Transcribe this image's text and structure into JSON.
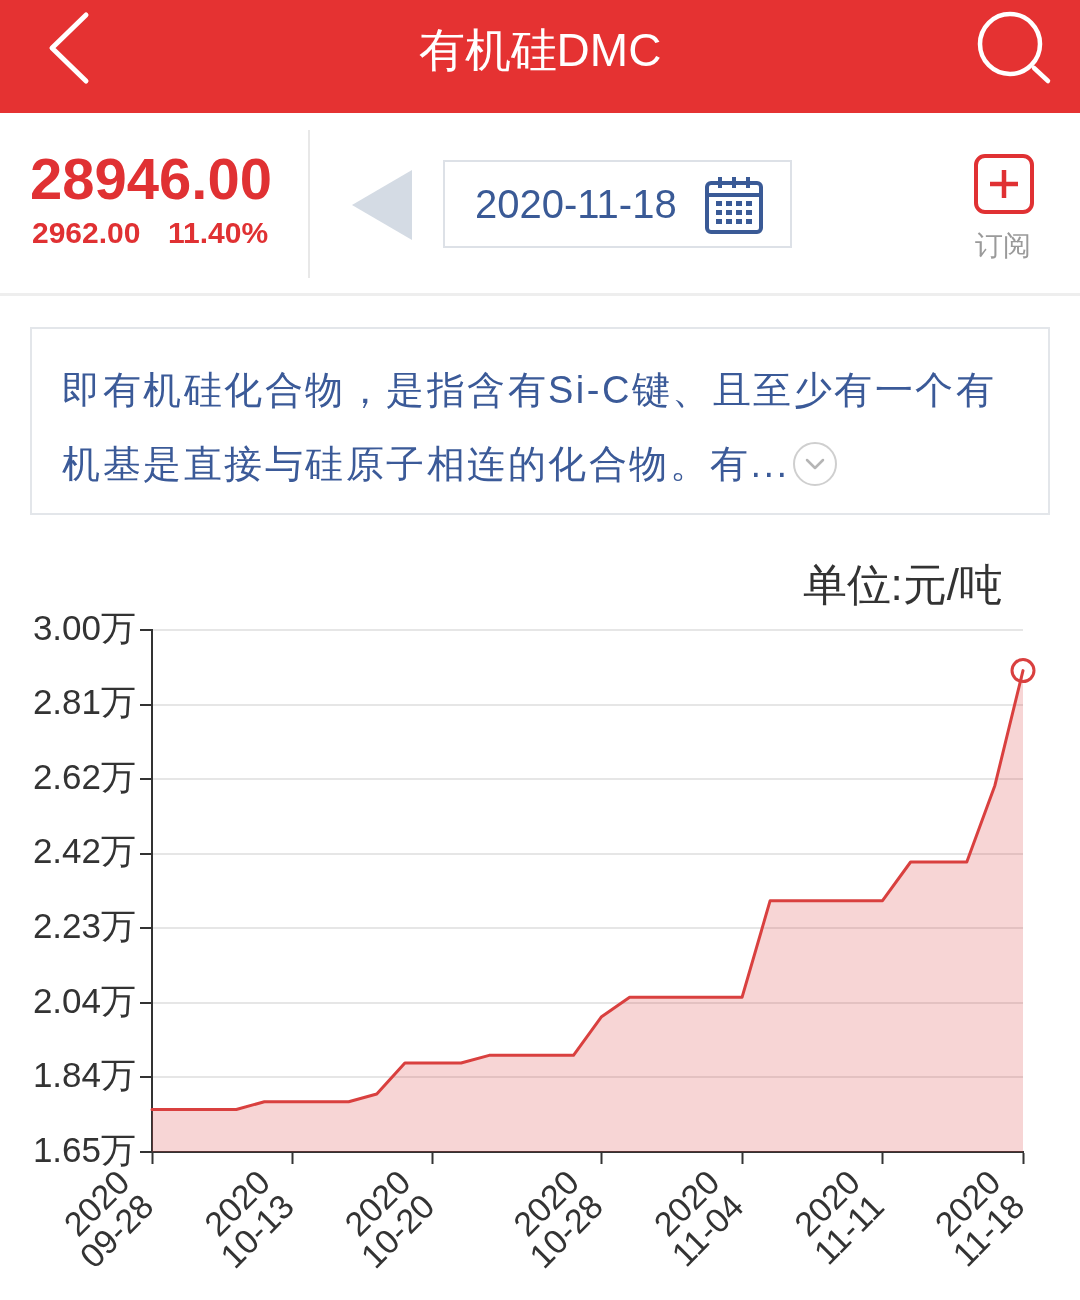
{
  "chart_data": {
    "type": "area",
    "title": "有机硅DMC",
    "subtitle": "即有机硅化合物，是指含有Si-C键、且至少有一个有机基是直接与硅原子相连的化合物。有...",
    "ylabel": "单位:元/吨",
    "annotations": [
      "28946.00",
      "2962.00",
      "11.40%",
      "2020-11-18",
      "订阅"
    ],
    "categories": [
      "2020\n09-28",
      null,
      null,
      null,
      null,
      "2020\n10-13",
      null,
      null,
      null,
      null,
      "2020\n10-20",
      null,
      null,
      null,
      null,
      null,
      "2020\n10-28",
      null,
      null,
      null,
      null,
      "2020\n11-04",
      null,
      null,
      null,
      null,
      "2020\n11-11",
      null,
      null,
      null,
      null,
      "2020\n11-18"
    ],
    "series": [
      {
        "color": "#d9403f",
        "marker": "none",
        "values": [
          1.76,
          1.76,
          1.76,
          1.76,
          1.78,
          1.78,
          1.78,
          1.78,
          1.8,
          1.88,
          1.88,
          1.88,
          1.9,
          1.9,
          1.9,
          1.9,
          2.0,
          2.05,
          2.05,
          2.05,
          2.05,
          2.05,
          2.3,
          2.3,
          2.3,
          2.3,
          2.3,
          2.4,
          2.4,
          2.4,
          2.598,
          2.895
        ]
      },
      {
        "type": "scatter",
        "color": "#d9403f",
        "marker": "circle",
        "values": [
          null,
          null,
          null,
          null,
          null,
          null,
          null,
          null,
          null,
          null,
          null,
          null,
          null,
          null,
          null,
          null,
          null,
          null,
          null,
          null,
          null,
          null,
          null,
          null,
          null,
          null,
          null,
          null,
          null,
          null,
          null,
          2.895
        ]
      }
    ],
    "ylim": [
      1.65,
      3.0
    ],
    "yticks": [
      {
        "value": 1.65,
        "label": "1.65万"
      },
      {
        "value": 1.8429,
        "label": "1.84万"
      },
      {
        "value": 2.0357,
        "label": "2.04万"
      },
      {
        "value": 2.2286,
        "label": "2.23万"
      },
      {
        "value": 2.4214,
        "label": "2.42万"
      },
      {
        "value": 2.615,
        "label": "2.62万"
      },
      {
        "value": 2.8071,
        "label": "2.81万"
      },
      {
        "value": 3.0,
        "label": "3.00万"
      }
    ],
    "grid": "y",
    "legend": false
  }
}
